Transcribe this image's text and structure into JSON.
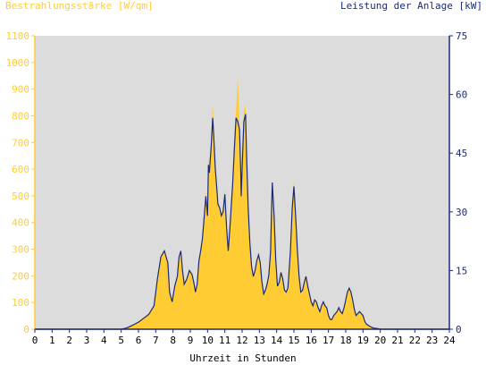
{
  "colors": {
    "irradiance": "#ffcc33",
    "power": "#1b2a78",
    "plot_bg": "#dcdcdc",
    "axis_left": "#ffcc33",
    "axis_right": "#1b2a78",
    "axis_bottom": "#1b2a78"
  },
  "chart_data": {
    "type": "area",
    "title_left": "Bestrahlungsstärke [W/qm]",
    "title_right": "Leistung der Anlage [kW]",
    "xlabel": "Uhrzeit in Stunden",
    "xlim": [
      0,
      24
    ],
    "ylim_left": [
      0,
      1100
    ],
    "ylim_right": [
      0,
      75
    ],
    "x_ticks": [
      "0",
      "1",
      "2",
      "3",
      "4",
      "5",
      "6",
      "7",
      "8",
      "9",
      "10",
      "11",
      "12",
      "13",
      "14",
      "15",
      "16",
      "17",
      "18",
      "19",
      "20",
      "21",
      "22",
      "23",
      "24"
    ],
    "y_ticks_left": [
      "0",
      "100",
      "200",
      "300",
      "400",
      "500",
      "600",
      "700",
      "800",
      "900",
      "1000",
      "1100"
    ],
    "y_ticks_right": [
      "0",
      "15",
      "30",
      "45",
      "60",
      "75"
    ],
    "grid": false,
    "series": [
      {
        "name": "Bestrahlungsstärke",
        "axis": "left",
        "style": "area",
        "x": [
          0,
          5.0,
          5.3,
          5.6,
          6.0,
          6.3,
          6.6,
          6.9,
          7.1,
          7.3,
          7.5,
          7.7,
          7.8,
          7.95,
          8.1,
          8.25,
          8.35,
          8.45,
          8.55,
          8.65,
          8.8,
          8.95,
          9.1,
          9.2,
          9.3,
          9.4,
          9.5,
          9.6,
          9.7,
          9.8,
          9.9,
          10.0,
          10.05,
          10.1,
          10.2,
          10.3,
          10.35,
          10.45,
          10.55,
          10.6,
          10.7,
          10.8,
          10.9,
          11.0,
          11.1,
          11.2,
          11.3,
          11.45,
          11.55,
          11.65,
          11.75,
          11.85,
          11.92,
          11.95,
          12.0,
          12.1,
          12.2,
          12.25,
          12.35,
          12.45,
          12.55,
          12.65,
          12.75,
          12.85,
          12.95,
          13.05,
          13.15,
          13.25,
          13.35,
          13.45,
          13.55,
          13.65,
          13.7,
          13.75,
          13.85,
          13.95,
          14.05,
          14.15,
          14.25,
          14.35,
          14.45,
          14.55,
          14.65,
          14.7,
          14.8,
          14.9,
          15.0,
          15.1,
          15.2,
          15.3,
          15.4,
          15.5,
          15.6,
          15.7,
          15.8,
          15.9,
          16.0,
          16.1,
          16.2,
          16.3,
          16.4,
          16.5,
          16.6,
          16.7,
          16.8,
          16.9,
          17.0,
          17.1,
          17.2,
          17.3,
          17.4,
          17.5,
          17.6,
          17.7,
          17.8,
          17.9,
          18.0,
          18.1,
          18.2,
          18.3,
          18.4,
          18.5,
          18.6,
          18.7,
          18.8,
          18.9,
          19.0,
          19.1,
          19.2,
          19.4,
          19.6,
          19.8,
          20.0,
          24
        ],
        "values": [
          0,
          0,
          5,
          15,
          30,
          45,
          60,
          95,
          200,
          280,
          300,
          250,
          140,
          100,
          160,
          200,
          270,
          300,
          220,
          170,
          190,
          220,
          210,
          180,
          140,
          170,
          260,
          300,
          340,
          420,
          520,
          430,
          650,
          620,
          700,
          840,
          780,
          620,
          520,
          480,
          460,
          430,
          450,
          530,
          380,
          300,
          390,
          560,
          700,
          820,
          940,
          780,
          600,
          500,
          620,
          820,
          840,
          700,
          460,
          330,
          240,
          200,
          220,
          260,
          280,
          250,
          180,
          130,
          150,
          170,
          210,
          300,
          450,
          560,
          430,
          260,
          160,
          180,
          220,
          190,
          150,
          140,
          160,
          200,
          300,
          460,
          560,
          430,
          300,
          200,
          140,
          150,
          180,
          200,
          160,
          130,
          100,
          90,
          110,
          100,
          80,
          70,
          90,
          100,
          90,
          80,
          50,
          40,
          40,
          50,
          60,
          70,
          80,
          70,
          60,
          80,
          110,
          140,
          160,
          140,
          110,
          70,
          50,
          60,
          70,
          60,
          50,
          30,
          20,
          10,
          5,
          3,
          0,
          0
        ]
      },
      {
        "name": "Leistung",
        "axis": "right",
        "style": "line",
        "x": [
          0,
          5.0,
          5.3,
          5.6,
          6.0,
          6.3,
          6.6,
          6.9,
          7.1,
          7.3,
          7.5,
          7.7,
          7.8,
          7.95,
          8.1,
          8.25,
          8.35,
          8.45,
          8.55,
          8.65,
          8.8,
          8.95,
          9.1,
          9.2,
          9.3,
          9.4,
          9.5,
          9.6,
          9.7,
          9.8,
          9.9,
          10.0,
          10.05,
          10.1,
          10.2,
          10.3,
          10.35,
          10.45,
          10.55,
          10.6,
          10.7,
          10.8,
          10.9,
          11.0,
          11.1,
          11.2,
          11.3,
          11.45,
          11.55,
          11.65,
          11.75,
          11.85,
          11.92,
          11.95,
          12.0,
          12.1,
          12.2,
          12.25,
          12.35,
          12.45,
          12.55,
          12.65,
          12.75,
          12.85,
          12.95,
          13.05,
          13.15,
          13.25,
          13.35,
          13.45,
          13.55,
          13.65,
          13.7,
          13.75,
          13.85,
          13.95,
          14.05,
          14.15,
          14.25,
          14.35,
          14.45,
          14.55,
          14.65,
          14.7,
          14.8,
          14.9,
          15.0,
          15.1,
          15.2,
          15.3,
          15.4,
          15.5,
          15.6,
          15.7,
          15.8,
          15.9,
          16.0,
          16.1,
          16.2,
          16.3,
          16.4,
          16.5,
          16.6,
          16.7,
          16.8,
          16.9,
          17.0,
          17.1,
          17.2,
          17.3,
          17.4,
          17.5,
          17.6,
          17.7,
          17.8,
          17.9,
          18.0,
          18.1,
          18.2,
          18.3,
          18.4,
          18.5,
          18.6,
          18.7,
          18.8,
          18.9,
          19.0,
          19.1,
          19.2,
          19.4,
          19.6,
          19.8,
          20.0,
          24
        ],
        "values": [
          0,
          0,
          0.3,
          0.9,
          1.8,
          2.8,
          3.8,
          6.0,
          13.0,
          18.5,
          20.0,
          17.0,
          9.5,
          7.0,
          11.0,
          13.5,
          18.5,
          20.0,
          15.0,
          11.5,
          12.8,
          15.0,
          14.0,
          12.0,
          9.5,
          11.5,
          17.5,
          20.0,
          23.0,
          28.5,
          34.0,
          29.0,
          42.0,
          40.0,
          46.0,
          54.0,
          50.0,
          41.0,
          35.0,
          32.0,
          31.0,
          29.0,
          30.0,
          34.5,
          26.0,
          20.0,
          26.5,
          37.0,
          46.0,
          54.0,
          53.0,
          51.0,
          40.0,
          34.0,
          41.0,
          53.0,
          55.0,
          46.0,
          31.0,
          22.0,
          16.0,
          13.5,
          15.0,
          17.5,
          19.0,
          17.0,
          12.0,
          9.0,
          10.0,
          11.5,
          14.0,
          20.0,
          30.0,
          37.5,
          29.0,
          17.5,
          11.0,
          12.0,
          14.5,
          13.0,
          10.0,
          9.5,
          10.5,
          13.5,
          20.0,
          31.0,
          36.5,
          29.0,
          20.0,
          13.5,
          9.5,
          10.0,
          12.0,
          13.5,
          11.0,
          9.0,
          7.0,
          6.0,
          7.5,
          7.0,
          5.5,
          4.5,
          6.0,
          7.0,
          6.0,
          5.5,
          3.5,
          2.5,
          2.5,
          3.5,
          4.0,
          4.5,
          5.5,
          4.5,
          4.0,
          5.5,
          7.5,
          9.5,
          10.5,
          9.5,
          7.5,
          5.0,
          3.5,
          4.0,
          4.5,
          4.0,
          3.5,
          2.0,
          1.3,
          0.7,
          0.3,
          0.2,
          0,
          0
        ]
      }
    ]
  }
}
